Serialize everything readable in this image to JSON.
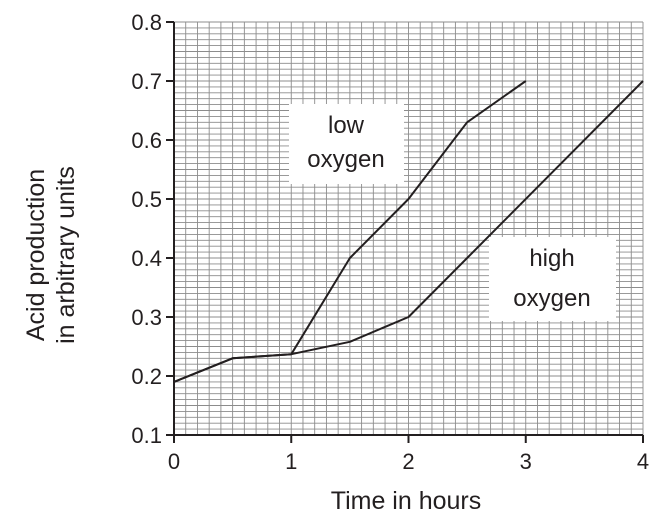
{
  "chart_data": {
    "type": "line",
    "xlabel": "Time in hours",
    "ylabel": [
      "Acid production",
      "in arbitrary units"
    ],
    "xlim": [
      0,
      4
    ],
    "ylim": [
      0.1,
      0.8
    ],
    "x_ticks": [
      0,
      1,
      2,
      3,
      4
    ],
    "x_tick_labels": [
      "0",
      "1",
      "2",
      "3",
      "4"
    ],
    "y_ticks": [
      0.1,
      0.2,
      0.3,
      0.4,
      0.5,
      0.6,
      0.7,
      0.8
    ],
    "y_tick_labels": [
      "0.1",
      "0.2",
      "0.3",
      "0.4",
      "0.5",
      "0.6",
      "0.7",
      "0.8"
    ],
    "grid": true,
    "series": [
      {
        "name": "low oxygen",
        "label_lines": [
          "low",
          "oxygen"
        ],
        "x": [
          0,
          0.5,
          1,
          1.5,
          2,
          2.5,
          3
        ],
        "y": [
          0.19,
          0.23,
          0.237,
          0.4,
          0.5,
          0.63,
          0.7
        ]
      },
      {
        "name": "high oxygen",
        "label_lines": [
          "high",
          "oxygen"
        ],
        "x": [
          0,
          0.5,
          1,
          1.5,
          2,
          4
        ],
        "y": [
          0.19,
          0.23,
          0.237,
          0.258,
          0.3,
          0.7
        ]
      }
    ]
  },
  "colors": {
    "ink": "#231f20",
    "grid": "#8c8c8c",
    "background": "#ffffff"
  }
}
